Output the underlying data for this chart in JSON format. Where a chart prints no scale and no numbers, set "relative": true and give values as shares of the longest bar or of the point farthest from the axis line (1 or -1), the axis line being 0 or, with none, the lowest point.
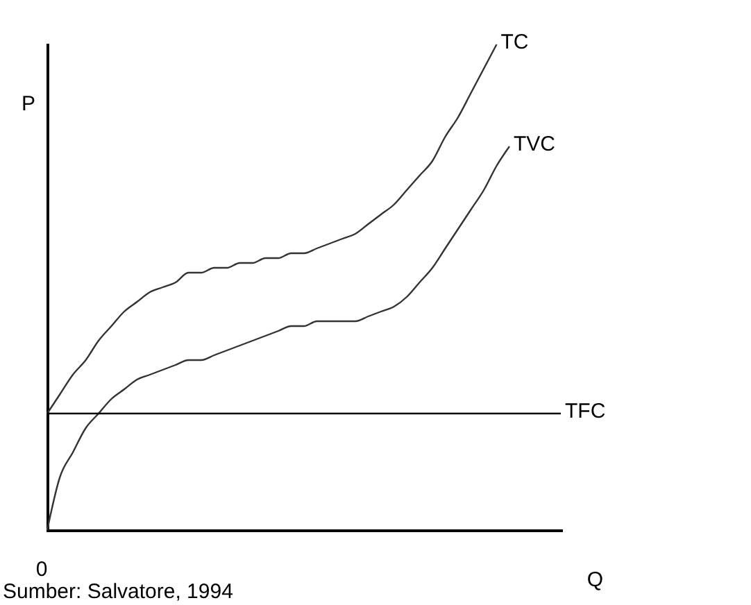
{
  "chart_data": {
    "type": "line",
    "relative": true,
    "xlabel": "Q",
    "ylabel": "P",
    "legend": false,
    "marker": "none",
    "line_style": "solid",
    "categories": [
      null,
      null,
      null,
      null,
      null,
      null,
      null,
      null,
      null,
      null,
      null,
      null,
      null,
      null,
      null,
      null,
      null,
      null,
      null,
      null,
      null,
      null,
      null,
      null,
      null,
      null,
      null,
      null,
      null,
      null,
      null,
      null,
      null,
      null,
      null,
      null,
      null,
      null,
      null,
      null,
      null
    ],
    "series": [
      {
        "name": "TC",
        "color": "#333333",
        "values": [
          0.24,
          0.28,
          0.32,
          0.35,
          0.39,
          0.42,
          0.45,
          0.47,
          0.49,
          0.5,
          0.51,
          0.53,
          0.53,
          0.54,
          0.54,
          0.55,
          0.55,
          0.56,
          0.56,
          0.57,
          0.57,
          0.58,
          0.59,
          0.6,
          0.61,
          0.63,
          0.65,
          0.67,
          0.7,
          0.73,
          0.76,
          0.81,
          0.85,
          0.9,
          0.95,
          1.0,
          null,
          null,
          null,
          null,
          null
        ]
      },
      {
        "name": "TVC",
        "color": "#333333",
        "values": [
          0,
          0.11,
          0.16,
          0.21,
          0.24,
          0.27,
          0.29,
          0.31,
          0.32,
          0.33,
          0.34,
          0.35,
          0.35,
          0.36,
          0.37,
          0.38,
          0.39,
          0.4,
          0.41,
          0.42,
          0.42,
          0.43,
          0.43,
          0.43,
          0.43,
          0.44,
          0.45,
          0.46,
          0.48,
          0.51,
          0.54,
          0.58,
          0.62,
          0.66,
          0.7,
          0.75,
          0.79,
          null,
          null,
          null,
          null
        ]
      },
      {
        "name": "TFC",
        "color": "#000000",
        "values": [
          0.24,
          0.24,
          0.24,
          0.24,
          0.24,
          0.24,
          0.24,
          0.24,
          0.24,
          0.24,
          0.24,
          0.24,
          0.24,
          0.24,
          0.24,
          0.24,
          0.24,
          0.24,
          0.24,
          0.24,
          0.24,
          0.24,
          0.24,
          0.24,
          0.24,
          0.24,
          0.24,
          0.24,
          0.24,
          0.24,
          0.24,
          0.24,
          0.24,
          0.24,
          0.24,
          0.24,
          0.24,
          0.24,
          0.24,
          0.24,
          0.24
        ]
      }
    ],
    "annotations": [
      "0",
      "Sumber: Salvatore, 1994"
    ]
  }
}
